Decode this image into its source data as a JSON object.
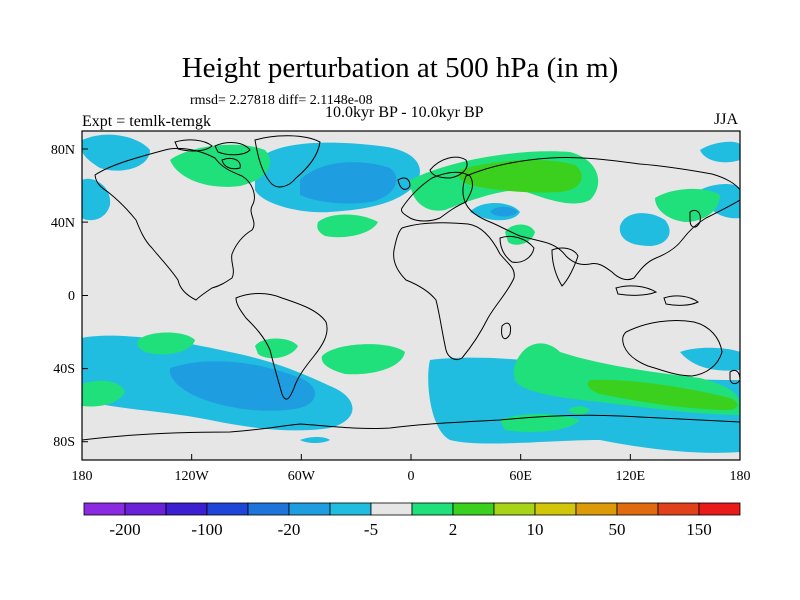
{
  "title": "Height perturbation at 500 hPa (in m)",
  "stats": "rmsd= 2.27818 diff= 2.1148e-08",
  "subtitle": "10.0kyr BP - 10.0kyr BP",
  "experiment": "Expt = temlk-temgk",
  "season": "JJA",
  "map": {
    "projection": "cylindrical equidistant",
    "lon_range": [
      -180,
      180
    ],
    "lat_range": [
      -90,
      90
    ],
    "background_color": "#e6e6e6",
    "coastline_color": "#000000",
    "lon_ticks": [
      "180",
      "120W",
      "60W",
      "0",
      "60E",
      "120E",
      "180"
    ],
    "lat_ticks": [
      "80N",
      "40N",
      "0",
      "40S",
      "80S"
    ]
  },
  "colorbar": {
    "colors": [
      "#8a2be2",
      "#6a22d8",
      "#3b1fd0",
      "#1f45d8",
      "#1e74d8",
      "#1e9ee0",
      "#21bde0",
      "#e6e6e6",
      "#20e07c",
      "#3cd01e",
      "#a8d418",
      "#d2c60a",
      "#dc9a08",
      "#e06a10",
      "#e0401a",
      "#e81a1a"
    ],
    "labels": [
      {
        "text": "-200",
        "after_index": 0
      },
      {
        "text": "-100",
        "after_index": 2
      },
      {
        "text": "-20",
        "after_index": 4
      },
      {
        "text": "-5",
        "after_index": 6
      },
      {
        "text": "2",
        "after_index": 8
      },
      {
        "text": "10",
        "after_index": 10
      },
      {
        "text": "50",
        "after_index": 12
      },
      {
        "text": "150",
        "after_index": 14
      }
    ]
  }
}
